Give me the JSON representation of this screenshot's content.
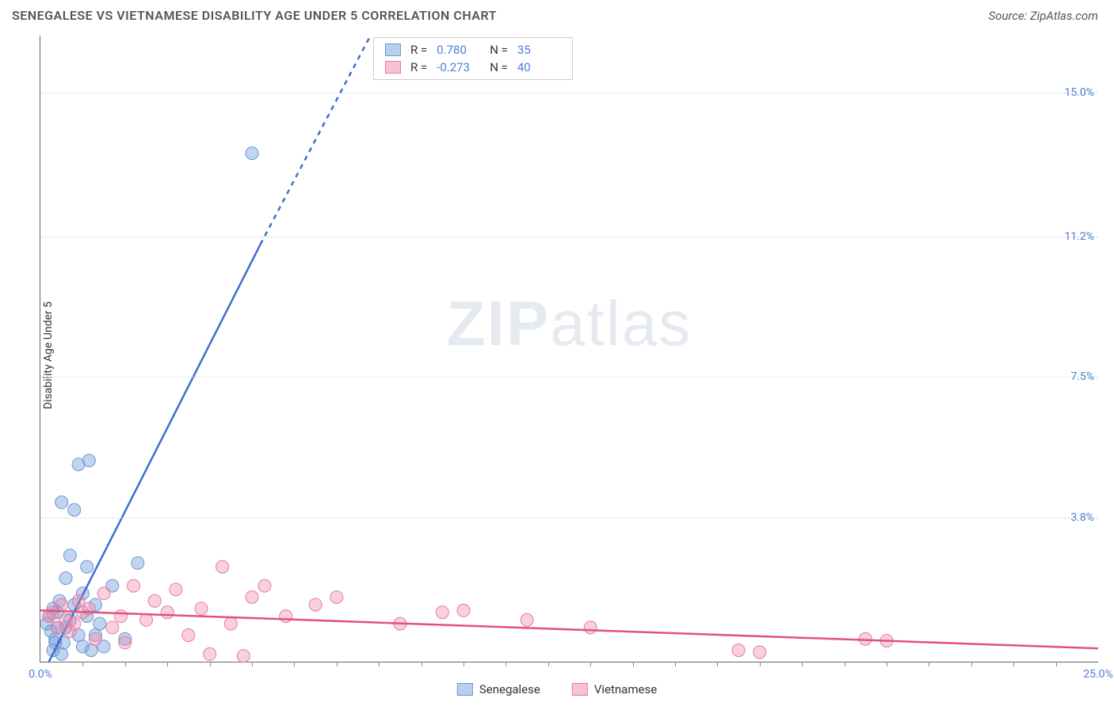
{
  "header": {
    "title": "SENEGALESE VS VIETNAMESE DISABILITY AGE UNDER 5 CORRELATION CHART",
    "source": "Source: ZipAtlas.com"
  },
  "watermark": {
    "part1": "ZIP",
    "part2": "atlas"
  },
  "chart": {
    "type": "scatter",
    "ylabel": "Disability Age Under 5",
    "xlim": [
      0,
      25
    ],
    "ylim": [
      0,
      16.5
    ],
    "x_tick_labels": [
      {
        "v": 0,
        "label": "0.0%"
      },
      {
        "v": 25,
        "label": "25.0%"
      }
    ],
    "x_minor_ticks": [
      1,
      2,
      3,
      4,
      5,
      6,
      7,
      8,
      9,
      10,
      11,
      12,
      13,
      14,
      15,
      16,
      17,
      18,
      19,
      20,
      21,
      22,
      23,
      24
    ],
    "y_tick_labels": [
      {
        "v": 3.8,
        "label": "3.8%"
      },
      {
        "v": 7.5,
        "label": "7.5%"
      },
      {
        "v": 11.2,
        "label": "11.2%"
      },
      {
        "v": 15.0,
        "label": "15.0%"
      }
    ],
    "grid_color": "#dddddd",
    "axis_color": "#666666",
    "background_color": "#ffffff",
    "series": [
      {
        "name": "Senegalese",
        "color_fill": "rgba(120,160,220,0.45)",
        "color_stroke": "#6a98d6",
        "swatch_fill": "#b8cff0",
        "swatch_border": "#6a98d6",
        "marker_radius": 8,
        "stats": {
          "R": "0.780",
          "N": "35"
        },
        "trend": {
          "x1": 0.2,
          "y1": 0.0,
          "x2": 5.2,
          "y2": 11.0,
          "dash_from_x": 5.2,
          "dash_to_x": 7.8,
          "dash_to_y": 16.5,
          "color": "#3b6fd0",
          "width": 2.5
        },
        "points": [
          [
            0.15,
            1.0
          ],
          [
            0.2,
            1.2
          ],
          [
            0.25,
            0.8
          ],
          [
            0.3,
            1.4
          ],
          [
            0.35,
            0.6
          ],
          [
            0.4,
            0.9
          ],
          [
            0.45,
            1.6
          ],
          [
            0.5,
            4.2
          ],
          [
            0.55,
            0.5
          ],
          [
            0.6,
            2.2
          ],
          [
            0.7,
            1.1
          ],
          [
            0.8,
            4.0
          ],
          [
            0.9,
            5.2
          ],
          [
            1.0,
            1.8
          ],
          [
            1.1,
            2.5
          ],
          [
            1.15,
            5.3
          ],
          [
            1.2,
            0.3
          ],
          [
            1.3,
            0.7
          ],
          [
            1.4,
            1.0
          ],
          [
            1.5,
            0.4
          ],
          [
            1.7,
            2.0
          ],
          [
            2.0,
            0.6
          ],
          [
            2.3,
            2.6
          ],
          [
            5.0,
            13.4
          ],
          [
            0.3,
            0.3
          ],
          [
            0.35,
            0.5
          ],
          [
            0.4,
            1.3
          ],
          [
            0.5,
            0.2
          ],
          [
            0.6,
            0.9
          ],
          [
            0.7,
            2.8
          ],
          [
            0.8,
            1.5
          ],
          [
            0.9,
            0.7
          ],
          [
            1.0,
            0.4
          ],
          [
            1.1,
            1.2
          ],
          [
            1.3,
            1.5
          ]
        ]
      },
      {
        "name": "Vietnamese",
        "color_fill": "rgba(240,140,170,0.40)",
        "color_stroke": "#e67aa0",
        "swatch_fill": "#f7c2d3",
        "swatch_border": "#e67aa0",
        "marker_radius": 8,
        "stats": {
          "R": "-0.273",
          "N": "40"
        },
        "trend": {
          "x1": 0,
          "y1": 1.35,
          "x2": 25,
          "y2": 0.35,
          "color": "#e0517f",
          "width": 2.5
        },
        "points": [
          [
            0.2,
            1.2
          ],
          [
            0.3,
            1.3
          ],
          [
            0.4,
            0.9
          ],
          [
            0.5,
            1.5
          ],
          [
            0.6,
            1.1
          ],
          [
            0.7,
            0.8
          ],
          [
            0.8,
            1.0
          ],
          [
            0.9,
            1.6
          ],
          [
            1.0,
            1.3
          ],
          [
            1.15,
            1.4
          ],
          [
            1.3,
            0.6
          ],
          [
            1.5,
            1.8
          ],
          [
            1.7,
            0.9
          ],
          [
            1.9,
            1.2
          ],
          [
            2.0,
            0.5
          ],
          [
            2.2,
            2.0
          ],
          [
            2.5,
            1.1
          ],
          [
            2.7,
            1.6
          ],
          [
            3.0,
            1.3
          ],
          [
            3.2,
            1.9
          ],
          [
            3.5,
            0.7
          ],
          [
            3.8,
            1.4
          ],
          [
            4.0,
            0.2
          ],
          [
            4.3,
            2.5
          ],
          [
            4.5,
            1.0
          ],
          [
            5.0,
            1.7
          ],
          [
            5.3,
            2.0
          ],
          [
            5.8,
            1.2
          ],
          [
            6.5,
            1.5
          ],
          [
            7.0,
            1.7
          ],
          [
            8.5,
            1.0
          ],
          [
            9.5,
            1.3
          ],
          [
            10.0,
            1.35
          ],
          [
            11.5,
            1.1
          ],
          [
            13.0,
            0.9
          ],
          [
            16.5,
            0.3
          ],
          [
            17.0,
            0.25
          ],
          [
            19.5,
            0.6
          ],
          [
            20.0,
            0.55
          ],
          [
            4.8,
            0.15
          ]
        ]
      }
    ],
    "stats_box": {
      "r_label": "R  =",
      "n_label": "N  ="
    },
    "legend": {
      "items": [
        {
          "label": "Senegalese",
          "fill": "#b8cff0",
          "border": "#6a98d6"
        },
        {
          "label": "Vietnamese",
          "fill": "#f7c2d3",
          "border": "#e67aa0"
        }
      ]
    }
  }
}
